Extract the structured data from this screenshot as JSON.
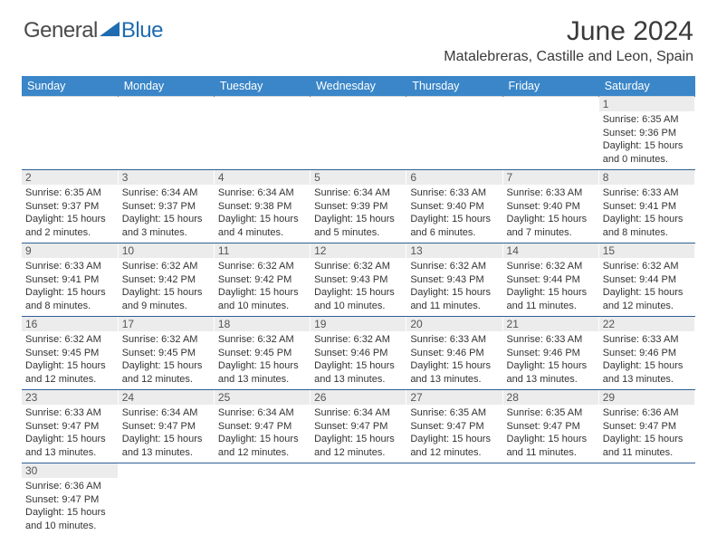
{
  "brand": {
    "part1": "General",
    "part2": "Blue",
    "logo_color": "#1f6cb0",
    "text_color": "#4a4a4a"
  },
  "header": {
    "month_year": "June 2024",
    "location": "Matalebreras, Castille and Leon, Spain"
  },
  "colors": {
    "header_bg": "#3a86c8",
    "row_border": "#2f5f95",
    "daynum_bg": "#ececec"
  },
  "day_headers": [
    "Sunday",
    "Monday",
    "Tuesday",
    "Wednesday",
    "Thursday",
    "Friday",
    "Saturday"
  ],
  "weeks": [
    [
      null,
      null,
      null,
      null,
      null,
      null,
      {
        "day": "1",
        "sunrise": "Sunrise: 6:35 AM",
        "sunset": "Sunset: 9:36 PM",
        "daylight": "Daylight: 15 hours and 0 minutes."
      }
    ],
    [
      {
        "day": "2",
        "sunrise": "Sunrise: 6:35 AM",
        "sunset": "Sunset: 9:37 PM",
        "daylight": "Daylight: 15 hours and 2 minutes."
      },
      {
        "day": "3",
        "sunrise": "Sunrise: 6:34 AM",
        "sunset": "Sunset: 9:37 PM",
        "daylight": "Daylight: 15 hours and 3 minutes."
      },
      {
        "day": "4",
        "sunrise": "Sunrise: 6:34 AM",
        "sunset": "Sunset: 9:38 PM",
        "daylight": "Daylight: 15 hours and 4 minutes."
      },
      {
        "day": "5",
        "sunrise": "Sunrise: 6:34 AM",
        "sunset": "Sunset: 9:39 PM",
        "daylight": "Daylight: 15 hours and 5 minutes."
      },
      {
        "day": "6",
        "sunrise": "Sunrise: 6:33 AM",
        "sunset": "Sunset: 9:40 PM",
        "daylight": "Daylight: 15 hours and 6 minutes."
      },
      {
        "day": "7",
        "sunrise": "Sunrise: 6:33 AM",
        "sunset": "Sunset: 9:40 PM",
        "daylight": "Daylight: 15 hours and 7 minutes."
      },
      {
        "day": "8",
        "sunrise": "Sunrise: 6:33 AM",
        "sunset": "Sunset: 9:41 PM",
        "daylight": "Daylight: 15 hours and 8 minutes."
      }
    ],
    [
      {
        "day": "9",
        "sunrise": "Sunrise: 6:33 AM",
        "sunset": "Sunset: 9:41 PM",
        "daylight": "Daylight: 15 hours and 8 minutes."
      },
      {
        "day": "10",
        "sunrise": "Sunrise: 6:32 AM",
        "sunset": "Sunset: 9:42 PM",
        "daylight": "Daylight: 15 hours and 9 minutes."
      },
      {
        "day": "11",
        "sunrise": "Sunrise: 6:32 AM",
        "sunset": "Sunset: 9:42 PM",
        "daylight": "Daylight: 15 hours and 10 minutes."
      },
      {
        "day": "12",
        "sunrise": "Sunrise: 6:32 AM",
        "sunset": "Sunset: 9:43 PM",
        "daylight": "Daylight: 15 hours and 10 minutes."
      },
      {
        "day": "13",
        "sunrise": "Sunrise: 6:32 AM",
        "sunset": "Sunset: 9:43 PM",
        "daylight": "Daylight: 15 hours and 11 minutes."
      },
      {
        "day": "14",
        "sunrise": "Sunrise: 6:32 AM",
        "sunset": "Sunset: 9:44 PM",
        "daylight": "Daylight: 15 hours and 11 minutes."
      },
      {
        "day": "15",
        "sunrise": "Sunrise: 6:32 AM",
        "sunset": "Sunset: 9:44 PM",
        "daylight": "Daylight: 15 hours and 12 minutes."
      }
    ],
    [
      {
        "day": "16",
        "sunrise": "Sunrise: 6:32 AM",
        "sunset": "Sunset: 9:45 PM",
        "daylight": "Daylight: 15 hours and 12 minutes."
      },
      {
        "day": "17",
        "sunrise": "Sunrise: 6:32 AM",
        "sunset": "Sunset: 9:45 PM",
        "daylight": "Daylight: 15 hours and 12 minutes."
      },
      {
        "day": "18",
        "sunrise": "Sunrise: 6:32 AM",
        "sunset": "Sunset: 9:45 PM",
        "daylight": "Daylight: 15 hours and 13 minutes."
      },
      {
        "day": "19",
        "sunrise": "Sunrise: 6:32 AM",
        "sunset": "Sunset: 9:46 PM",
        "daylight": "Daylight: 15 hours and 13 minutes."
      },
      {
        "day": "20",
        "sunrise": "Sunrise: 6:33 AM",
        "sunset": "Sunset: 9:46 PM",
        "daylight": "Daylight: 15 hours and 13 minutes."
      },
      {
        "day": "21",
        "sunrise": "Sunrise: 6:33 AM",
        "sunset": "Sunset: 9:46 PM",
        "daylight": "Daylight: 15 hours and 13 minutes."
      },
      {
        "day": "22",
        "sunrise": "Sunrise: 6:33 AM",
        "sunset": "Sunset: 9:46 PM",
        "daylight": "Daylight: 15 hours and 13 minutes."
      }
    ],
    [
      {
        "day": "23",
        "sunrise": "Sunrise: 6:33 AM",
        "sunset": "Sunset: 9:47 PM",
        "daylight": "Daylight: 15 hours and 13 minutes."
      },
      {
        "day": "24",
        "sunrise": "Sunrise: 6:34 AM",
        "sunset": "Sunset: 9:47 PM",
        "daylight": "Daylight: 15 hours and 13 minutes."
      },
      {
        "day": "25",
        "sunrise": "Sunrise: 6:34 AM",
        "sunset": "Sunset: 9:47 PM",
        "daylight": "Daylight: 15 hours and 12 minutes."
      },
      {
        "day": "26",
        "sunrise": "Sunrise: 6:34 AM",
        "sunset": "Sunset: 9:47 PM",
        "daylight": "Daylight: 15 hours and 12 minutes."
      },
      {
        "day": "27",
        "sunrise": "Sunrise: 6:35 AM",
        "sunset": "Sunset: 9:47 PM",
        "daylight": "Daylight: 15 hours and 12 minutes."
      },
      {
        "day": "28",
        "sunrise": "Sunrise: 6:35 AM",
        "sunset": "Sunset: 9:47 PM",
        "daylight": "Daylight: 15 hours and 11 minutes."
      },
      {
        "day": "29",
        "sunrise": "Sunrise: 6:36 AM",
        "sunset": "Sunset: 9:47 PM",
        "daylight": "Daylight: 15 hours and 11 minutes."
      }
    ],
    [
      {
        "day": "30",
        "sunrise": "Sunrise: 6:36 AM",
        "sunset": "Sunset: 9:47 PM",
        "daylight": "Daylight: 15 hours and 10 minutes."
      },
      null,
      null,
      null,
      null,
      null,
      null
    ]
  ]
}
